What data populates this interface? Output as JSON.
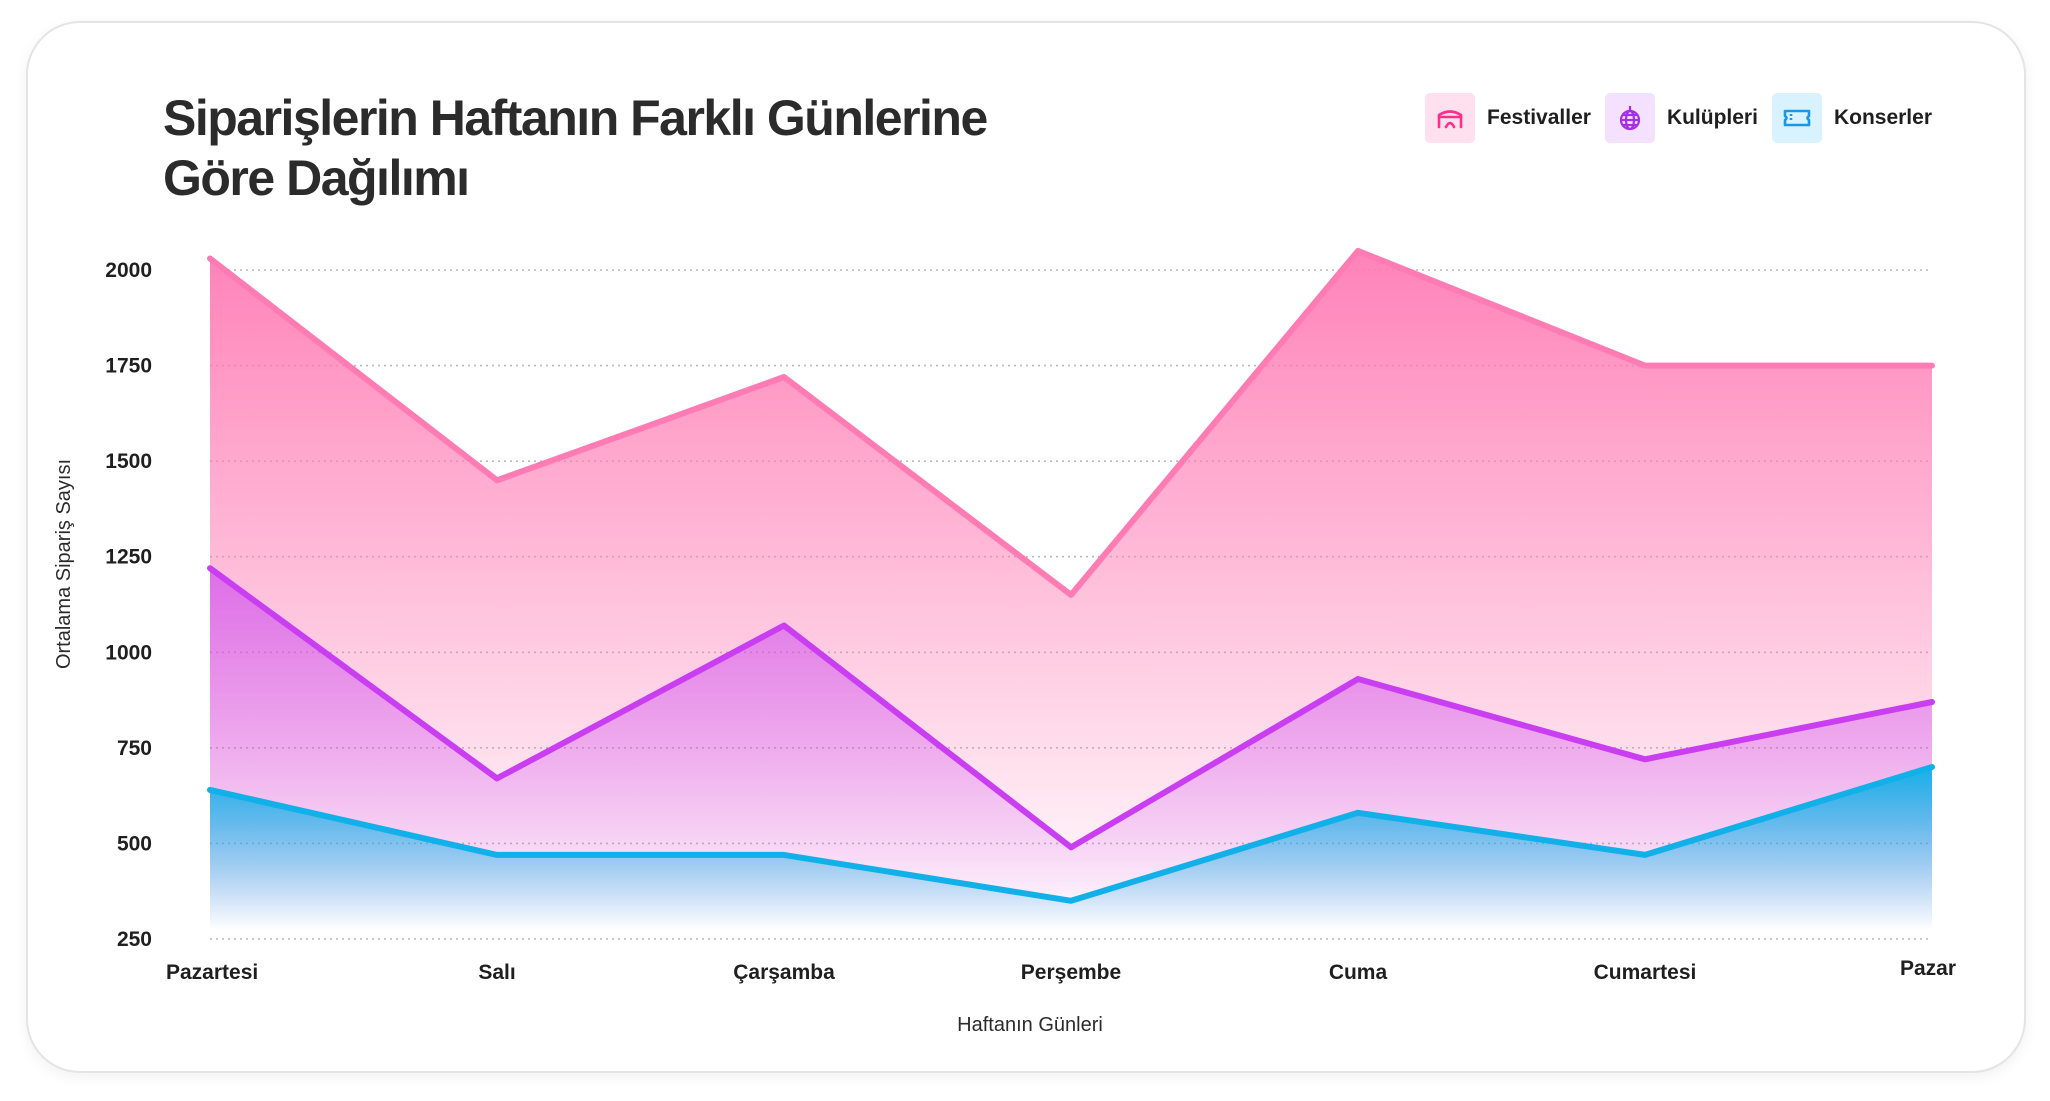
{
  "chart_data": {
    "type": "area",
    "title": "Siparişlerin Haftanın Farklı Günlerine Göre Dağılımı",
    "xlabel": "Haftanın Günleri",
    "ylabel": "Ortalama Sipariş Sayısı",
    "categories": [
      "Pazartesi",
      "Salı",
      "Çarşamba",
      "Perşembe",
      "Cuma",
      "Cumartesi",
      "Pazar"
    ],
    "ylim": [
      250,
      2000
    ],
    "yticks": [
      2000,
      1750,
      1500,
      1250,
      1000,
      750,
      500,
      250
    ],
    "grid": true,
    "legend_position": "top-right",
    "series": [
      {
        "name": "Festivaller",
        "values": [
          2030,
          1450,
          1720,
          1150,
          2050,
          1750,
          1750
        ],
        "color": "#ff7bb4",
        "icon": "tent-icon",
        "icon_bg": "#ffe0ee",
        "icon_color": "#ff2f8a"
      },
      {
        "name": "Kulüpleri",
        "values": [
          1220,
          670,
          1070,
          490,
          930,
          720,
          870
        ],
        "color": "#c93ef0",
        "icon": "disco-ball-icon",
        "icon_bg": "#f3e1ff",
        "icon_color": "#a52ee8"
      },
      {
        "name": "Konserler",
        "values": [
          640,
          470,
          470,
          350,
          580,
          470,
          700
        ],
        "color": "#12b0e8",
        "icon": "ticket-icon",
        "icon_bg": "#d8f2ff",
        "icon_color": "#1897e6"
      }
    ]
  }
}
